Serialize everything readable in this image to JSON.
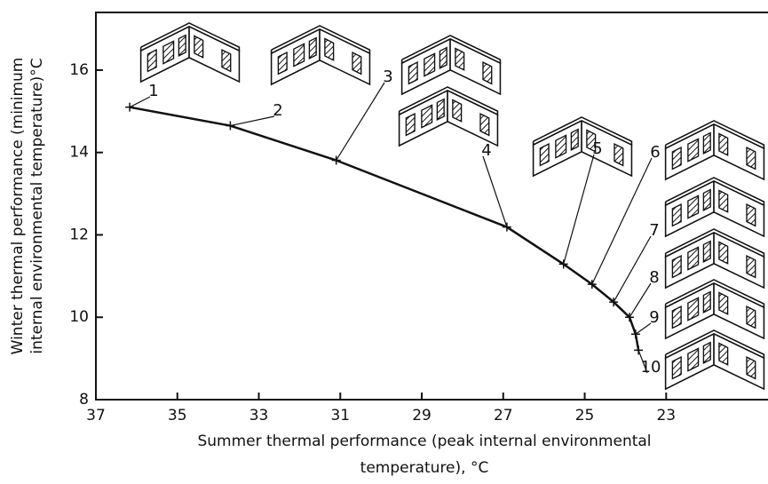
{
  "chart_data": {
    "type": "line",
    "xlabel": [
      "Summer thermal performance (peak internal environmental",
      "temperature), °C"
    ],
    "ylabel": [
      "Winter thermal performance (minimum",
      "internal environmental temperature)°C"
    ],
    "x": [
      36.17,
      33.7,
      31.1,
      26.91,
      25.52,
      24.82,
      24.29,
      23.9,
      23.75,
      23.68
    ],
    "series": [
      {
        "color": "#111111",
        "values": [
          15.1,
          14.65,
          13.81,
          12.19,
          11.29,
          10.8,
          10.37,
          10.0,
          9.59,
          9.2
        ],
        "labels": [
          "1",
          "2",
          "3",
          "4",
          "5",
          "6",
          "7",
          "8",
          "9",
          "10"
        ]
      }
    ],
    "xlim": [
      37,
      20.5
    ],
    "ylim": [
      8,
      17.4
    ],
    "xticks": [
      37,
      35,
      33,
      31,
      29,
      27,
      25,
      23
    ],
    "yticks": [
      8,
      10,
      12,
      14,
      16
    ]
  }
}
